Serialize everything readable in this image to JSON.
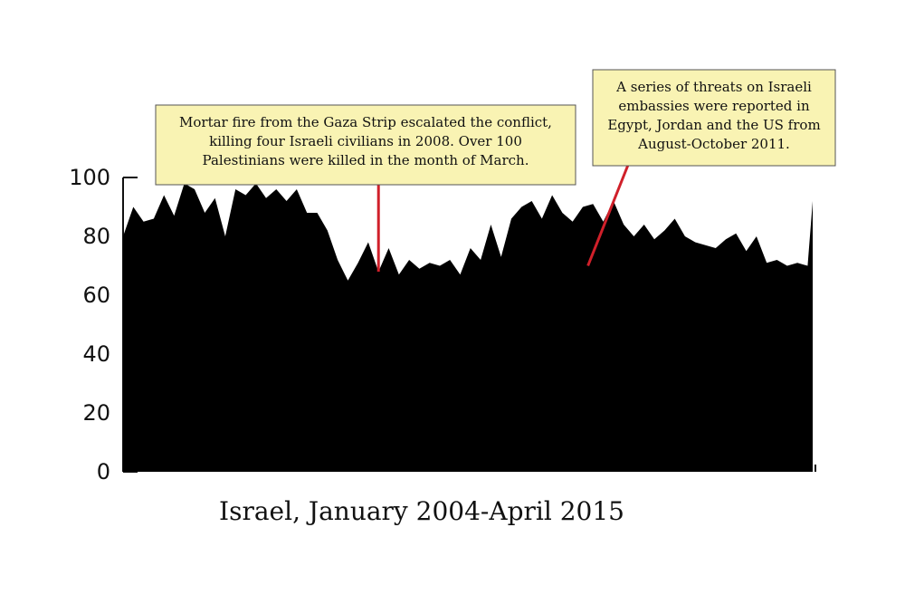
{
  "chart_data": {
    "type": "area",
    "title": "",
    "xlabel": "Israel, January 2004-April 2015",
    "ylabel": "",
    "ylim": [
      0,
      100
    ],
    "yticks": [
      "0",
      "20",
      "40",
      "60",
      "80",
      "100"
    ],
    "fill_color": "#000000",
    "annotation_line_color": "#d0202a",
    "annotation_box_color": "#f9f3b3",
    "series": [
      {
        "x": [
          "2004-01",
          "2004-03",
          "2004-05",
          "2004-07",
          "2004-09",
          "2004-11",
          "2005-01",
          "2005-03",
          "2005-05",
          "2005-07",
          "2005-09",
          "2005-11",
          "2006-01",
          "2006-03",
          "2006-05",
          "2006-07",
          "2006-09",
          "2006-11",
          "2007-01",
          "2007-03",
          "2007-05",
          "2007-07",
          "2007-09",
          "2007-11",
          "2008-01",
          "2008-03",
          "2008-05",
          "2008-07",
          "2008-09",
          "2008-11",
          "2009-01",
          "2009-03",
          "2009-05",
          "2009-07",
          "2009-09",
          "2009-11",
          "2010-01",
          "2010-03",
          "2010-05",
          "2010-07",
          "2010-09",
          "2010-11",
          "2011-01",
          "2011-03",
          "2011-05",
          "2011-07",
          "2011-09",
          "2011-11",
          "2012-01",
          "2012-03",
          "2012-05",
          "2012-07",
          "2012-09",
          "2012-11",
          "2013-01",
          "2013-03",
          "2013-05",
          "2013-07",
          "2013-09",
          "2013-11",
          "2014-01",
          "2014-03",
          "2014-05",
          "2014-07",
          "2014-09",
          "2014-11",
          "2015-01",
          "2015-03",
          "2015-04"
        ],
        "values": [
          80,
          90,
          85,
          86,
          94,
          87,
          98,
          96,
          88,
          93,
          80,
          96,
          94,
          98,
          93,
          96,
          92,
          96,
          88,
          88,
          82,
          72,
          65,
          71,
          78,
          68,
          76,
          67,
          72,
          69,
          71,
          70,
          72,
          67,
          76,
          72,
          84,
          73,
          86,
          90,
          92,
          86,
          94,
          88,
          85,
          90,
          91,
          85,
          92,
          84,
          80,
          84,
          79,
          82,
          86,
          80,
          78,
          77,
          76,
          79,
          81,
          75,
          80,
          71,
          72,
          70,
          71,
          70,
          92
        ]
      }
    ],
    "annotations": [
      {
        "text": "Mortar fire from the Gaza Strip escalated the conflict, killing four Israeli civilians in 2008. Over 100 Palestinians were killed in the month of March.",
        "lines": [
          "Mortar fire from the Gaza Strip escalated the conflict,",
          "killing four Israeli civilians in 2008. Over 100",
          "Palestinians were killed in the month of March."
        ],
        "x": "2008-03"
      },
      {
        "text": "A series of threats on Israeli embassies were reported in Egypt, Jordan and the US from August-October 2011.",
        "lines": [
          "A series of threats on Israeli",
          "embassies were reported in",
          "Egypt, Jordan and the US from",
          "August-October 2011."
        ],
        "x": "2011-08"
      }
    ]
  }
}
